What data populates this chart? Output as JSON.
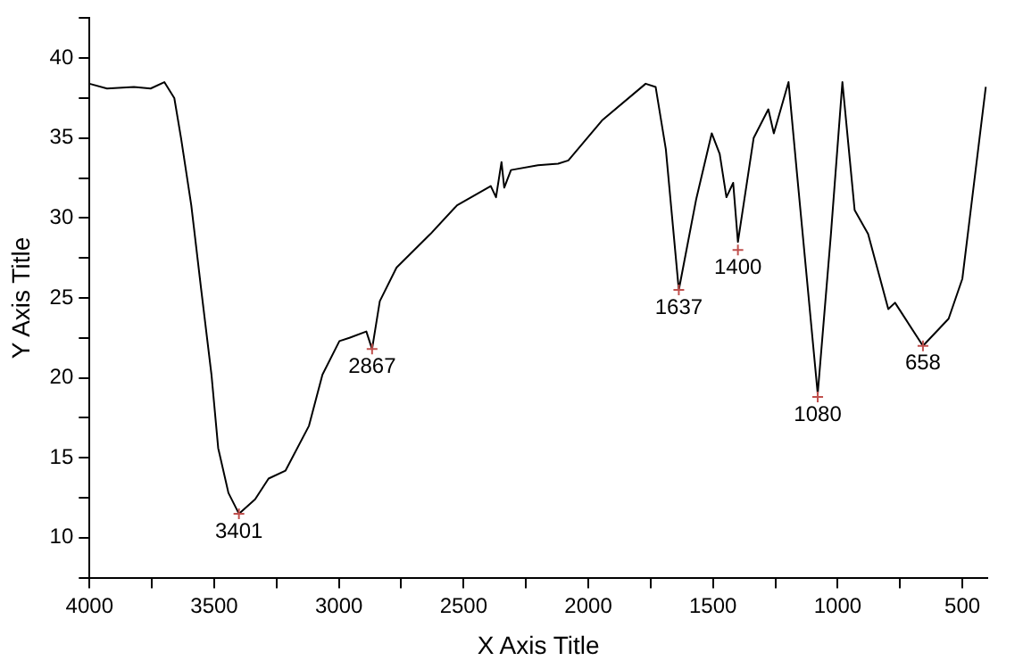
{
  "chart_data": {
    "type": "line",
    "xlabel": "X Axis Title",
    "ylabel": "Y Axis Title",
    "xlim": [
      4000,
      400
    ],
    "ylim": [
      7.5,
      42.5
    ],
    "xticks": [
      4000,
      {
        "value": 3750,
        "label": null
      },
      3500,
      {
        "value": 3250,
        "label": null
      },
      3000,
      {
        "value": 2750,
        "label": null
      },
      2500,
      {
        "value": 2250,
        "label": null
      },
      2000,
      {
        "value": 1750,
        "label": null
      },
      1500,
      {
        "value": 1250,
        "label": null
      },
      1000,
      {
        "value": 750,
        "label": null
      },
      500
    ],
    "yticks": [
      {
        "value": 7.5,
        "label": null
      },
      10,
      {
        "value": 12.5,
        "label": null
      },
      15,
      {
        "value": 17.5,
        "label": null
      },
      20,
      {
        "value": 22.5,
        "label": null
      },
      25,
      {
        "value": 27.5,
        "label": null
      },
      30,
      {
        "value": 32.5,
        "label": null
      },
      35,
      {
        "value": 37.5,
        "label": null
      },
      40,
      {
        "value": 42.5,
        "label": null
      }
    ],
    "grid": false,
    "legend": false,
    "marker": "none",
    "line_style": "solid",
    "series": [
      {
        "color": "#000000",
        "x": [
          4000,
          3930,
          3822,
          3755,
          3700,
          3660,
          3633,
          3592,
          3552,
          3511,
          3484,
          3443,
          3401,
          3336,
          3282,
          3214,
          3120,
          3066,
          2998,
          2958,
          2890,
          2867,
          2836,
          2769,
          2633,
          2526,
          2391,
          2370,
          2348,
          2337,
          2310,
          2202,
          2121,
          2080,
          1945,
          1770,
          1730,
          1689,
          1637,
          1567,
          1505,
          1473,
          1446,
          1419,
          1400,
          1337,
          1278,
          1256,
          1197,
          1162,
          1080,
          1027,
          981,
          932,
          878,
          797,
          770,
          658,
          555,
          500,
          406
        ],
        "values": [
          38.4,
          38.1,
          38.2,
          38.1,
          38.5,
          37.5,
          35.0,
          30.8,
          25.5,
          20.2,
          15.6,
          12.8,
          11.5,
          12.4,
          13.7,
          14.2,
          17.0,
          20.2,
          22.3,
          22.5,
          22.9,
          21.8,
          24.8,
          26.9,
          29.0,
          30.8,
          32.0,
          31.3,
          33.5,
          31.9,
          33.0,
          33.3,
          33.4,
          33.6,
          36.1,
          38.4,
          38.2,
          34.3,
          25.5,
          31.2,
          35.3,
          34.0,
          31.3,
          32.2,
          28.5,
          35.0,
          36.8,
          35.3,
          38.5,
          32.6,
          19.0,
          29.0,
          38.5,
          30.5,
          29.0,
          24.3,
          24.7,
          22.0,
          23.7,
          26.2,
          38.2
        ]
      }
    ],
    "annotations": [
      {
        "text": "3401",
        "x": 3401,
        "y": 11.5
      },
      {
        "text": "2867",
        "x": 2867,
        "y": 21.8
      },
      {
        "text": "1637",
        "x": 1637,
        "y": 25.5
      },
      {
        "text": "1400",
        "x": 1400,
        "y": 28.0
      },
      {
        "text": "1080",
        "x": 1080,
        "y": 18.8
      },
      {
        "text": "658",
        "x": 658,
        "y": 22.0
      }
    ]
  }
}
